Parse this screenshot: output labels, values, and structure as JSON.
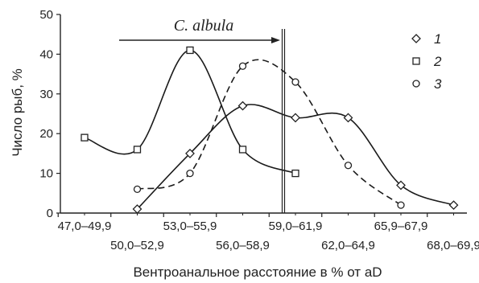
{
  "chart_data": {
    "type": "line",
    "title": "",
    "xlabel": "Вентроанальное расстояние в % от aD",
    "ylabel": "Число рыб, %",
    "ylim": [
      0,
      50
    ],
    "y_ticks": [
      0,
      10,
      20,
      30,
      40,
      50
    ],
    "categories": [
      "47,0–49,9",
      "50,0–52,9",
      "53,0–55,9",
      "56,0–58,9",
      "59,0–61,9",
      "62,0–64,9",
      "65,9–67,9",
      "68,0–69,9"
    ],
    "grid": false,
    "legend_position": "top-right",
    "series": [
      {
        "name": "1",
        "marker": "diamond",
        "line_style": "solid",
        "color": "#1a1a1a",
        "values": [
          null,
          1,
          15,
          27,
          24,
          24,
          7,
          2
        ]
      },
      {
        "name": "2",
        "marker": "square",
        "line_style": "solid",
        "color": "#1a1a1a",
        "values": [
          19,
          16,
          41,
          16,
          10,
          null,
          null,
          null
        ]
      },
      {
        "name": "3",
        "marker": "circle",
        "line_style": "dashed",
        "color": "#1a1a1a",
        "values": [
          null,
          6,
          10,
          37,
          33,
          12,
          2,
          null
        ]
      }
    ],
    "annotations": [
      {
        "text": "C. albula",
        "type": "arrow",
        "from_category": "47,0–49,9",
        "to_category": "59,0–61,9"
      }
    ],
    "reference_line": {
      "category": "59,0–61,9",
      "style": "double"
    }
  }
}
